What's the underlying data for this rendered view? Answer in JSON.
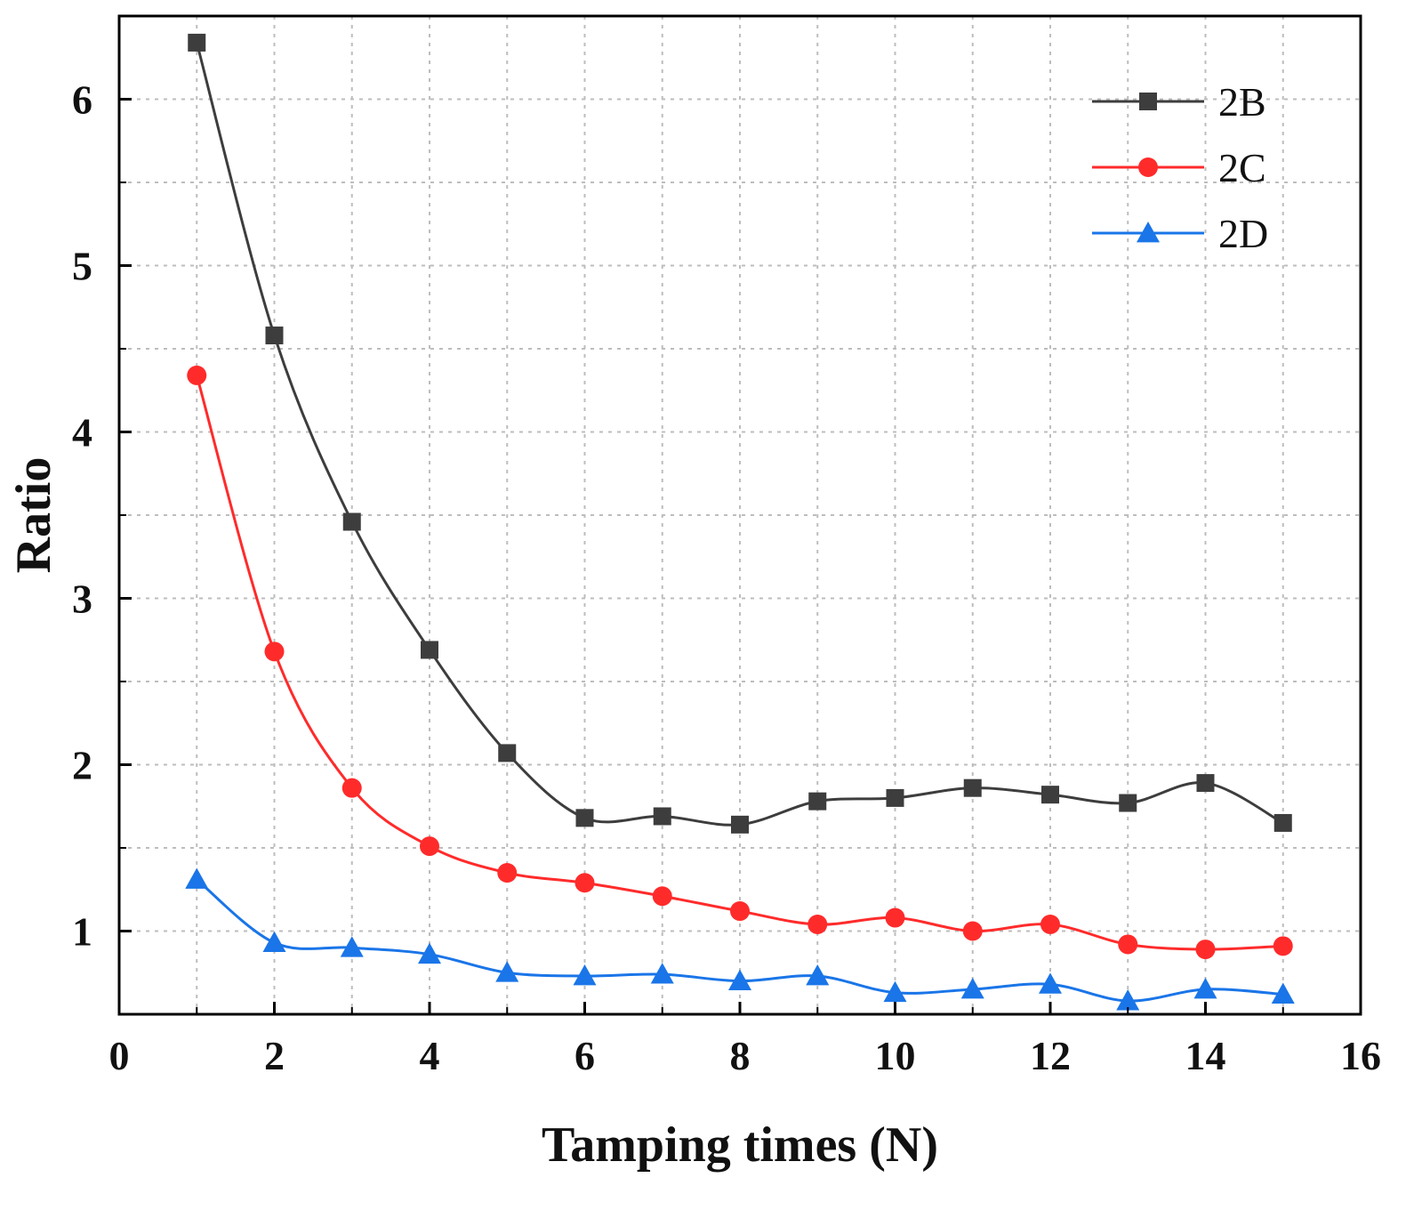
{
  "chart_data": {
    "type": "line",
    "title": "",
    "xlabel": "Tamping times (N)",
    "ylabel": "Ratio",
    "xlim": [
      0,
      16
    ],
    "ylim": [
      0.5,
      6.5
    ],
    "xticks": [
      0,
      2,
      4,
      6,
      8,
      10,
      12,
      14,
      16
    ],
    "yticks": [
      1,
      2,
      3,
      4,
      5,
      6
    ],
    "grid": true,
    "legend_position": "top-right",
    "x": [
      1,
      2,
      3,
      4,
      5,
      6,
      7,
      8,
      9,
      10,
      11,
      12,
      13,
      14,
      15
    ],
    "series": [
      {
        "name": "2B",
        "color": "#3d3d3d",
        "marker": "square",
        "values": [
          6.34,
          4.58,
          3.46,
          2.69,
          2.07,
          1.68,
          1.69,
          1.64,
          1.78,
          1.8,
          1.86,
          1.82,
          1.77,
          1.89,
          1.65
        ]
      },
      {
        "name": "2C",
        "color": "#ff2b2b",
        "marker": "circle",
        "values": [
          4.34,
          2.68,
          1.86,
          1.51,
          1.35,
          1.29,
          1.21,
          1.12,
          1.04,
          1.08,
          1.0,
          1.04,
          0.92,
          0.89,
          0.91
        ]
      },
      {
        "name": "2D",
        "color": "#1a75e8",
        "marker": "triangle",
        "values": [
          1.31,
          0.93,
          0.9,
          0.86,
          0.75,
          0.73,
          0.74,
          0.7,
          0.73,
          0.63,
          0.65,
          0.68,
          0.58,
          0.65,
          0.62
        ]
      }
    ]
  }
}
